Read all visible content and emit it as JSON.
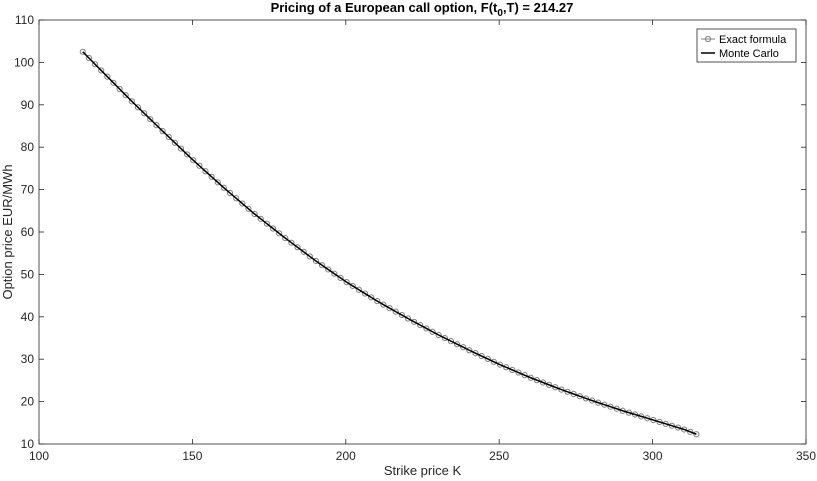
{
  "chart_data": {
    "type": "line",
    "title_main": "Pricing of a European call option, F(t",
    "title_sub": "0",
    "title_tail": ",T) = 214.27",
    "xlabel": "Strike price K",
    "ylabel": "Option price EUR/MWh",
    "xlim": [
      100,
      350
    ],
    "ylim": [
      10,
      110
    ],
    "xticks": [
      100,
      150,
      200,
      250,
      300,
      350
    ],
    "yticks": [
      10,
      20,
      30,
      40,
      50,
      60,
      70,
      80,
      90,
      100,
      110
    ],
    "grid": false,
    "legend_position": "top-right",
    "x_start": 114.27,
    "x_end": 314.27,
    "n_points": 101,
    "anchor_points": [
      [
        114.27,
        102.5
      ],
      [
        120,
        98.3
      ],
      [
        130,
        91.0
      ],
      [
        140,
        84.0
      ],
      [
        150,
        77.1
      ],
      [
        160,
        70.6
      ],
      [
        170,
        64.4
      ],
      [
        180,
        58.7
      ],
      [
        190,
        53.3
      ],
      [
        200,
        48.3
      ],
      [
        210,
        43.8
      ],
      [
        220,
        39.7
      ],
      [
        230,
        35.8
      ],
      [
        240,
        32.2
      ],
      [
        250,
        28.8
      ],
      [
        260,
        25.7
      ],
      [
        270,
        22.9
      ],
      [
        280,
        20.3
      ],
      [
        290,
        17.9
      ],
      [
        300,
        15.7
      ],
      [
        310,
        13.5
      ],
      [
        314.27,
        12.3
      ]
    ],
    "series": [
      {
        "name": "Exact formula",
        "color": "#808080",
        "marker": "circle"
      },
      {
        "name": "Monte Carlo",
        "color": "#000000",
        "marker": "none"
      }
    ]
  }
}
